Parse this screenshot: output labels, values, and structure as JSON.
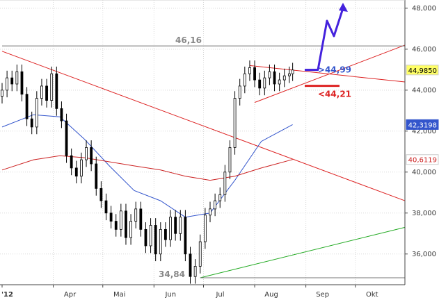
{
  "chart_data": {
    "type": "line",
    "subtype": "candlestick",
    "x_axis": {
      "labels": [
        "'12",
        "Apr",
        "Mai",
        "Jun",
        "Jul",
        "Aug",
        "Sep",
        "Okt"
      ],
      "range": [
        "2012-03-01",
        "2012-10-31"
      ]
    },
    "y_axis": {
      "ticks": [
        "36,000",
        "38,000",
        "40,000",
        "42,000",
        "44,000",
        "46,000",
        "48,000"
      ],
      "range": [
        34.5,
        48.3
      ],
      "position": "right"
    },
    "grid": true,
    "series": [
      {
        "kind": "candles",
        "color": "#000000",
        "x": [
          "2012-03-01",
          "2012-03-04",
          "2012-03-07",
          "2012-03-10",
          "2012-03-13",
          "2012-03-16",
          "2012-03-19",
          "2012-03-22",
          "2012-03-25",
          "2012-03-28",
          "2012-03-31",
          "2012-04-03",
          "2012-04-06",
          "2012-04-09",
          "2012-04-12",
          "2012-04-15",
          "2012-04-18",
          "2012-04-21",
          "2012-04-24",
          "2012-04-27",
          "2012-04-30",
          "2012-05-03",
          "2012-05-06",
          "2012-05-09",
          "2012-05-12",
          "2012-05-15",
          "2012-05-18",
          "2012-05-21",
          "2012-05-24",
          "2012-05-27",
          "2012-05-30",
          "2012-06-02",
          "2012-06-05",
          "2012-06-08",
          "2012-06-11",
          "2012-06-14",
          "2012-06-17",
          "2012-06-20",
          "2012-06-23",
          "2012-06-26",
          "2012-06-29",
          "2012-07-02",
          "2012-07-05",
          "2012-07-08",
          "2012-07-11",
          "2012-07-14",
          "2012-07-17",
          "2012-07-20",
          "2012-07-23",
          "2012-07-26",
          "2012-07-29",
          "2012-08-01",
          "2012-08-04",
          "2012-08-07",
          "2012-08-10",
          "2012-08-13",
          "2012-08-16",
          "2012-08-19",
          "2012-08-22",
          "2012-08-24"
        ],
        "close": [
          44.0,
          44.6,
          44.3,
          44.9,
          43.8,
          42.6,
          42.2,
          43.6,
          44.2,
          43.5,
          44.8,
          43.1,
          42.5,
          40.8,
          40.2,
          39.8,
          40.6,
          41.2,
          40.4,
          39.2,
          38.6,
          38.0,
          37.6,
          37.2,
          38.1,
          36.8,
          37.6,
          38.2,
          37.2,
          36.4,
          37.4,
          36.0,
          37.2,
          36.7,
          37.8,
          37.0,
          37.8,
          36.0,
          34.9,
          35.4,
          36.6,
          37.9,
          38.2,
          38.6,
          38.9,
          40.0,
          41.2,
          43.6,
          44.2,
          44.8,
          45.1,
          44.5,
          44.1,
          44.6,
          44.9,
          44.3,
          44.5,
          44.7,
          44.8,
          44.985
        ]
      },
      {
        "kind": "line",
        "label": "42,3198",
        "color": "#3355cc",
        "x": [
          "2012-03-01",
          "2012-03-20",
          "2012-04-05",
          "2012-04-20",
          "2012-05-05",
          "2012-05-20",
          "2012-06-05",
          "2012-06-20",
          "2012-07-05",
          "2012-07-20",
          "2012-08-05",
          "2012-08-24"
        ],
        "y": [
          42.2,
          42.8,
          42.7,
          41.6,
          40.3,
          39.1,
          38.6,
          37.8,
          38.0,
          39.6,
          41.5,
          42.3198
        ]
      },
      {
        "kind": "line",
        "label": "40,6119",
        "color": "#cc2222",
        "x": [
          "2012-03-01",
          "2012-03-20",
          "2012-04-05",
          "2012-04-20",
          "2012-05-05",
          "2012-05-20",
          "2012-06-05",
          "2012-06-20",
          "2012-07-05",
          "2012-07-20",
          "2012-08-05",
          "2012-08-24"
        ],
        "y": [
          40.1,
          40.6,
          40.8,
          40.7,
          40.5,
          40.3,
          40.1,
          39.8,
          39.6,
          39.8,
          40.2,
          40.6119
        ]
      }
    ],
    "trendlines": [
      {
        "name": "long-downtrend",
        "color": "#dd2222",
        "x": [
          "2012-03-01",
          "2012-10-31"
        ],
        "y": [
          45.9,
          38.6
        ]
      },
      {
        "name": "uptrend-support",
        "color": "#22aa22",
        "x": [
          "2012-06-29",
          "2012-10-31"
        ],
        "y": [
          34.84,
          37.3
        ]
      },
      {
        "name": "triangle-lower",
        "color": "#dd2222",
        "x": [
          "2012-08-01",
          "2012-10-31"
        ],
        "y": [
          43.4,
          46.2
        ]
      },
      {
        "name": "triangle-upper",
        "color": "#dd2222",
        "x": [
          "2012-07-29",
          "2012-10-31"
        ],
        "y": [
          45.2,
          44.4
        ]
      },
      {
        "name": "resistance-46",
        "color": "#777777",
        "x": [
          "2012-03-01",
          "2012-10-31"
        ],
        "y": [
          46.16,
          46.16
        ]
      },
      {
        "name": "support-34",
        "color": "#777777",
        "x": [
          "2012-06-29",
          "2012-10-31"
        ],
        "y": [
          34.84,
          34.84
        ]
      }
    ],
    "annotations": {
      "resistance_label": "46,16",
      "support_label": "34,84",
      "upper_level": {
        "text": ">44,99",
        "color": "#3355cc"
      },
      "lower_level": {
        "text": "<44,21",
        "color": "#dd2222"
      },
      "arrow_color": "#4422dd"
    },
    "price_boxes": [
      {
        "text": "44,9850",
        "value": 44.985,
        "bg": "#ffff66",
        "fg": "#000000"
      },
      {
        "text": "42,3198",
        "value": 42.3198,
        "bg": "#3355cc",
        "fg": "#ffffff"
      },
      {
        "text": "40,6119",
        "value": 40.6119,
        "bg": "#ffffff",
        "fg": "#cc2222"
      }
    ]
  }
}
